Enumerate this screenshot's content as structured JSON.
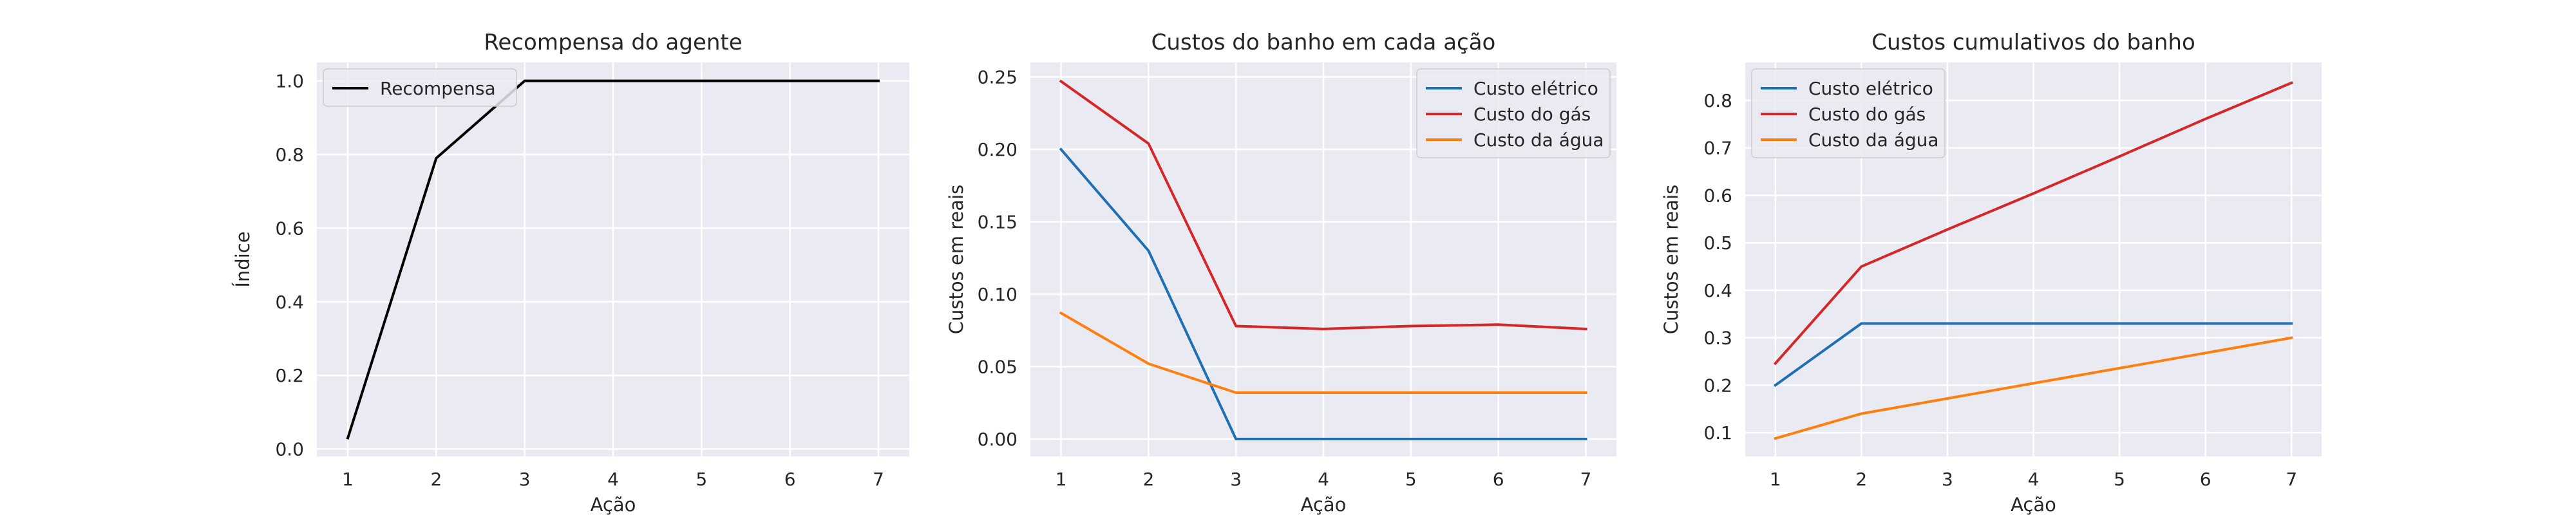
{
  "chart_data": [
    {
      "type": "line",
      "title": "Recompensa do agente",
      "xlabel": "Ação",
      "ylabel": "Índice",
      "x": [
        1,
        2,
        3,
        4,
        5,
        6,
        7
      ],
      "xlim": [
        0.65,
        7.35
      ],
      "ylim": [
        -0.02,
        1.05
      ],
      "xticks": [
        "1",
        "2",
        "3",
        "4",
        "5",
        "6",
        "7"
      ],
      "yticks": [
        "0.0",
        "0.2",
        "0.4",
        "0.6",
        "0.8",
        "1.0"
      ],
      "legend_position": "top-left",
      "grid": true,
      "series": [
        {
          "name": "Recompensa",
          "color": "#000000",
          "values": [
            0.03,
            0.79,
            1.0,
            1.0,
            1.0,
            1.0,
            1.0
          ]
        }
      ]
    },
    {
      "type": "line",
      "title": "Custos do banho em cada ação",
      "xlabel": "Ação",
      "ylabel": "Custos em reais",
      "x": [
        1,
        2,
        3,
        4,
        5,
        6,
        7
      ],
      "xlim": [
        0.65,
        7.35
      ],
      "ylim": [
        -0.012,
        0.26
      ],
      "xticks": [
        "1",
        "2",
        "3",
        "4",
        "5",
        "6",
        "7"
      ],
      "yticks": [
        "0.00",
        "0.05",
        "0.10",
        "0.15",
        "0.20",
        "0.25"
      ],
      "legend_position": "top-right",
      "grid": true,
      "series": [
        {
          "name": "Custo elétrico",
          "color": "#1f6fb4",
          "values": [
            0.2,
            0.13,
            0.0,
            0.0,
            0.0,
            0.0,
            0.0
          ]
        },
        {
          "name": "Custo do gás",
          "color": "#d62728",
          "values": [
            0.247,
            0.204,
            0.078,
            0.076,
            0.078,
            0.079,
            0.076
          ]
        },
        {
          "name": "Custo da água",
          "color": "#ff7f0e",
          "values": [
            0.087,
            0.052,
            0.032,
            0.032,
            0.032,
            0.032,
            0.032
          ]
        }
      ]
    },
    {
      "type": "line",
      "title": "Custos cumulativos do banho",
      "xlabel": "Ação",
      "ylabel": "Custos em reais",
      "x": [
        1,
        2,
        3,
        4,
        5,
        6,
        7
      ],
      "xlim": [
        0.65,
        7.35
      ],
      "ylim": [
        0.05,
        0.88
      ],
      "xticks": [
        "1",
        "2",
        "3",
        "4",
        "5",
        "6",
        "7"
      ],
      "yticks": [
        "0.1",
        "0.2",
        "0.3",
        "0.4",
        "0.5",
        "0.6",
        "0.7",
        "0.8"
      ],
      "legend_position": "top-left",
      "grid": true,
      "series": [
        {
          "name": "Custo elétrico",
          "color": "#1f6fb4",
          "values": [
            0.2,
            0.33,
            0.33,
            0.33,
            0.33,
            0.33,
            0.33
          ]
        },
        {
          "name": "Custo do gás",
          "color": "#d62728",
          "values": [
            0.246,
            0.45,
            0.528,
            0.604,
            0.682,
            0.761,
            0.837
          ]
        },
        {
          "name": "Custo da água",
          "color": "#ff7f0e",
          "values": [
            0.088,
            0.14,
            0.172,
            0.204,
            0.236,
            0.268,
            0.3
          ]
        }
      ]
    }
  ]
}
